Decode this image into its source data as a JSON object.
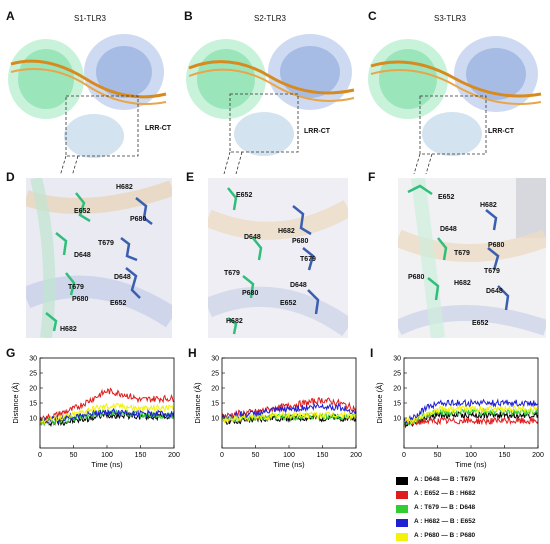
{
  "panels": {
    "A": {
      "letter": "A",
      "title": "S1-TLR3",
      "lrr_label": "LRR-CT"
    },
    "B": {
      "letter": "B",
      "title": "S2-TLR3",
      "lrr_label": "LRR-CT"
    },
    "C": {
      "letter": "C",
      "title": "S3-TLR3",
      "lrr_label": "LRR-CT"
    },
    "D": {
      "letter": "D",
      "residues": [
        "H682",
        "E652",
        "P680",
        "T679",
        "D648",
        "T679",
        "D648",
        "P680",
        "E652",
        "H682"
      ]
    },
    "E": {
      "letter": "E",
      "residues": [
        "E652",
        "H682",
        "D648",
        "P680",
        "T679",
        "T679",
        "P680",
        "D648",
        "E652",
        "H682"
      ]
    },
    "F": {
      "letter": "F",
      "residues": [
        "E652",
        "H682",
        "D648",
        "P680",
        "T679",
        "T679",
        "P680",
        "H682",
        "D648",
        "E652"
      ]
    }
  },
  "colors": {
    "chainA": "#2fbf7a",
    "chainB": "#3a5fb0",
    "rna": "#d98a1e"
  },
  "chart_data": [
    {
      "letter": "G",
      "type": "line",
      "xlabel": "Time (ns)",
      "ylabel": "Distance (Å)",
      "xlim": [
        0,
        200
      ],
      "ylim": [
        0,
        30
      ],
      "xticks": [
        0,
        50,
        100,
        150,
        200
      ],
      "yticks": [
        10,
        15,
        20,
        25,
        30
      ],
      "series": [
        {
          "name": "A : D648 — B : T679",
          "color": "#000000",
          "x": [
            0,
            25,
            50,
            75,
            100,
            125,
            150,
            175,
            200
          ],
          "y": [
            8.5,
            8.5,
            9,
            10,
            11,
            11,
            10.5,
            10.5,
            10.5
          ]
        },
        {
          "name": "A : E652 — B : H682",
          "color": "#e01b1b",
          "x": [
            0,
            25,
            50,
            75,
            100,
            125,
            150,
            175,
            200
          ],
          "y": [
            9.5,
            11,
            13,
            16,
            19,
            18,
            16,
            16.5,
            16.5
          ]
        },
        {
          "name": "A : T679 — B : D648",
          "color": "#33cc33",
          "x": [
            0,
            25,
            50,
            75,
            100,
            125,
            150,
            175,
            200
          ],
          "y": [
            8.5,
            9,
            10,
            11,
            12,
            11.5,
            11,
            11,
            11
          ]
        },
        {
          "name": "A : H682 — B : E652",
          "color": "#1f1fd6",
          "x": [
            0,
            25,
            50,
            75,
            100,
            125,
            150,
            175,
            200
          ],
          "y": [
            9,
            9.5,
            10.5,
            11.5,
            12,
            12,
            11.5,
            11.5,
            11.5
          ]
        },
        {
          "name": "A : P680 — B : P680",
          "color": "#f2f20a",
          "x": [
            0,
            25,
            50,
            75,
            100,
            125,
            150,
            175,
            200
          ],
          "y": [
            9,
            10,
            11,
            13,
            14,
            14,
            13,
            13.5,
            13
          ]
        }
      ]
    },
    {
      "letter": "H",
      "type": "line",
      "xlabel": "Time (ns)",
      "ylabel": "Distance (Å)",
      "xlim": [
        0,
        200
      ],
      "ylim": [
        0,
        30
      ],
      "xticks": [
        0,
        50,
        100,
        150,
        200
      ],
      "yticks": [
        10,
        15,
        20,
        25,
        30
      ],
      "series": [
        {
          "name": "A : D648 — B : T679",
          "color": "#000000",
          "x": [
            0,
            25,
            50,
            75,
            100,
            125,
            150,
            175,
            200
          ],
          "y": [
            9,
            9,
            9.5,
            10,
            10,
            10,
            10,
            10,
            10
          ]
        },
        {
          "name": "A : E652 — B : H682",
          "color": "#e01b1b",
          "x": [
            0,
            25,
            50,
            75,
            100,
            125,
            150,
            175,
            200
          ],
          "y": [
            10.5,
            11.5,
            12,
            13,
            14,
            15,
            16,
            15,
            13
          ]
        },
        {
          "name": "A : T679 — B : D648",
          "color": "#33cc33",
          "x": [
            0,
            25,
            50,
            75,
            100,
            125,
            150,
            175,
            200
          ],
          "y": [
            9.5,
            10,
            10,
            10.5,
            10.5,
            10.5,
            10.5,
            10.5,
            10.5
          ]
        },
        {
          "name": "A : H682 — B : E652",
          "color": "#1f1fd6",
          "x": [
            0,
            25,
            50,
            75,
            100,
            125,
            150,
            175,
            200
          ],
          "y": [
            10,
            11,
            11.5,
            12.5,
            13,
            13.5,
            14,
            13.5,
            12
          ]
        },
        {
          "name": "A : P680 — B : P680",
          "color": "#f2f20a",
          "x": [
            0,
            25,
            50,
            75,
            100,
            125,
            150,
            175,
            200
          ],
          "y": [
            9.5,
            10,
            10,
            10.5,
            11,
            11,
            11,
            11,
            10.5
          ]
        }
      ]
    },
    {
      "letter": "I",
      "type": "line",
      "xlabel": "Time (ns)",
      "ylabel": "Distance (Å)",
      "xlim": [
        0,
        200
      ],
      "ylim": [
        0,
        30
      ],
      "xticks": [
        0,
        50,
        100,
        150,
        200
      ],
      "yticks": [
        10,
        15,
        20,
        25,
        30
      ],
      "series": [
        {
          "name": "A : D648 — B : T679",
          "color": "#000000",
          "x": [
            0,
            15,
            30,
            50,
            75,
            100,
            125,
            150,
            175,
            200
          ],
          "y": [
            8,
            8.5,
            10,
            11,
            11,
            11,
            11,
            11,
            11,
            11
          ]
        },
        {
          "name": "A : E652 — B : H682",
          "color": "#e01b1b",
          "x": [
            0,
            15,
            30,
            50,
            75,
            100,
            125,
            150,
            175,
            200
          ],
          "y": [
            8,
            8.5,
            9,
            9,
            9,
            9,
            9,
            9,
            9,
            9
          ]
        },
        {
          "name": "A : T679 — B : D648",
          "color": "#33cc33",
          "x": [
            0,
            15,
            30,
            50,
            75,
            100,
            125,
            150,
            175,
            200
          ],
          "y": [
            8,
            9,
            11,
            12,
            12,
            12,
            12,
            12,
            12,
            12
          ]
        },
        {
          "name": "A : H682 — B : E652",
          "color": "#1f1fd6",
          "x": [
            0,
            15,
            30,
            50,
            75,
            100,
            125,
            150,
            175,
            200
          ],
          "y": [
            9,
            10,
            13,
            15,
            15,
            15,
            15,
            15,
            15,
            15
          ]
        },
        {
          "name": "A : P680 — B : P680",
          "color": "#f2f20a",
          "x": [
            0,
            15,
            30,
            50,
            75,
            100,
            125,
            150,
            175,
            200
          ],
          "y": [
            8.5,
            9.5,
            11,
            13,
            13,
            13,
            13,
            13,
            13,
            13
          ]
        }
      ]
    }
  ]
}
